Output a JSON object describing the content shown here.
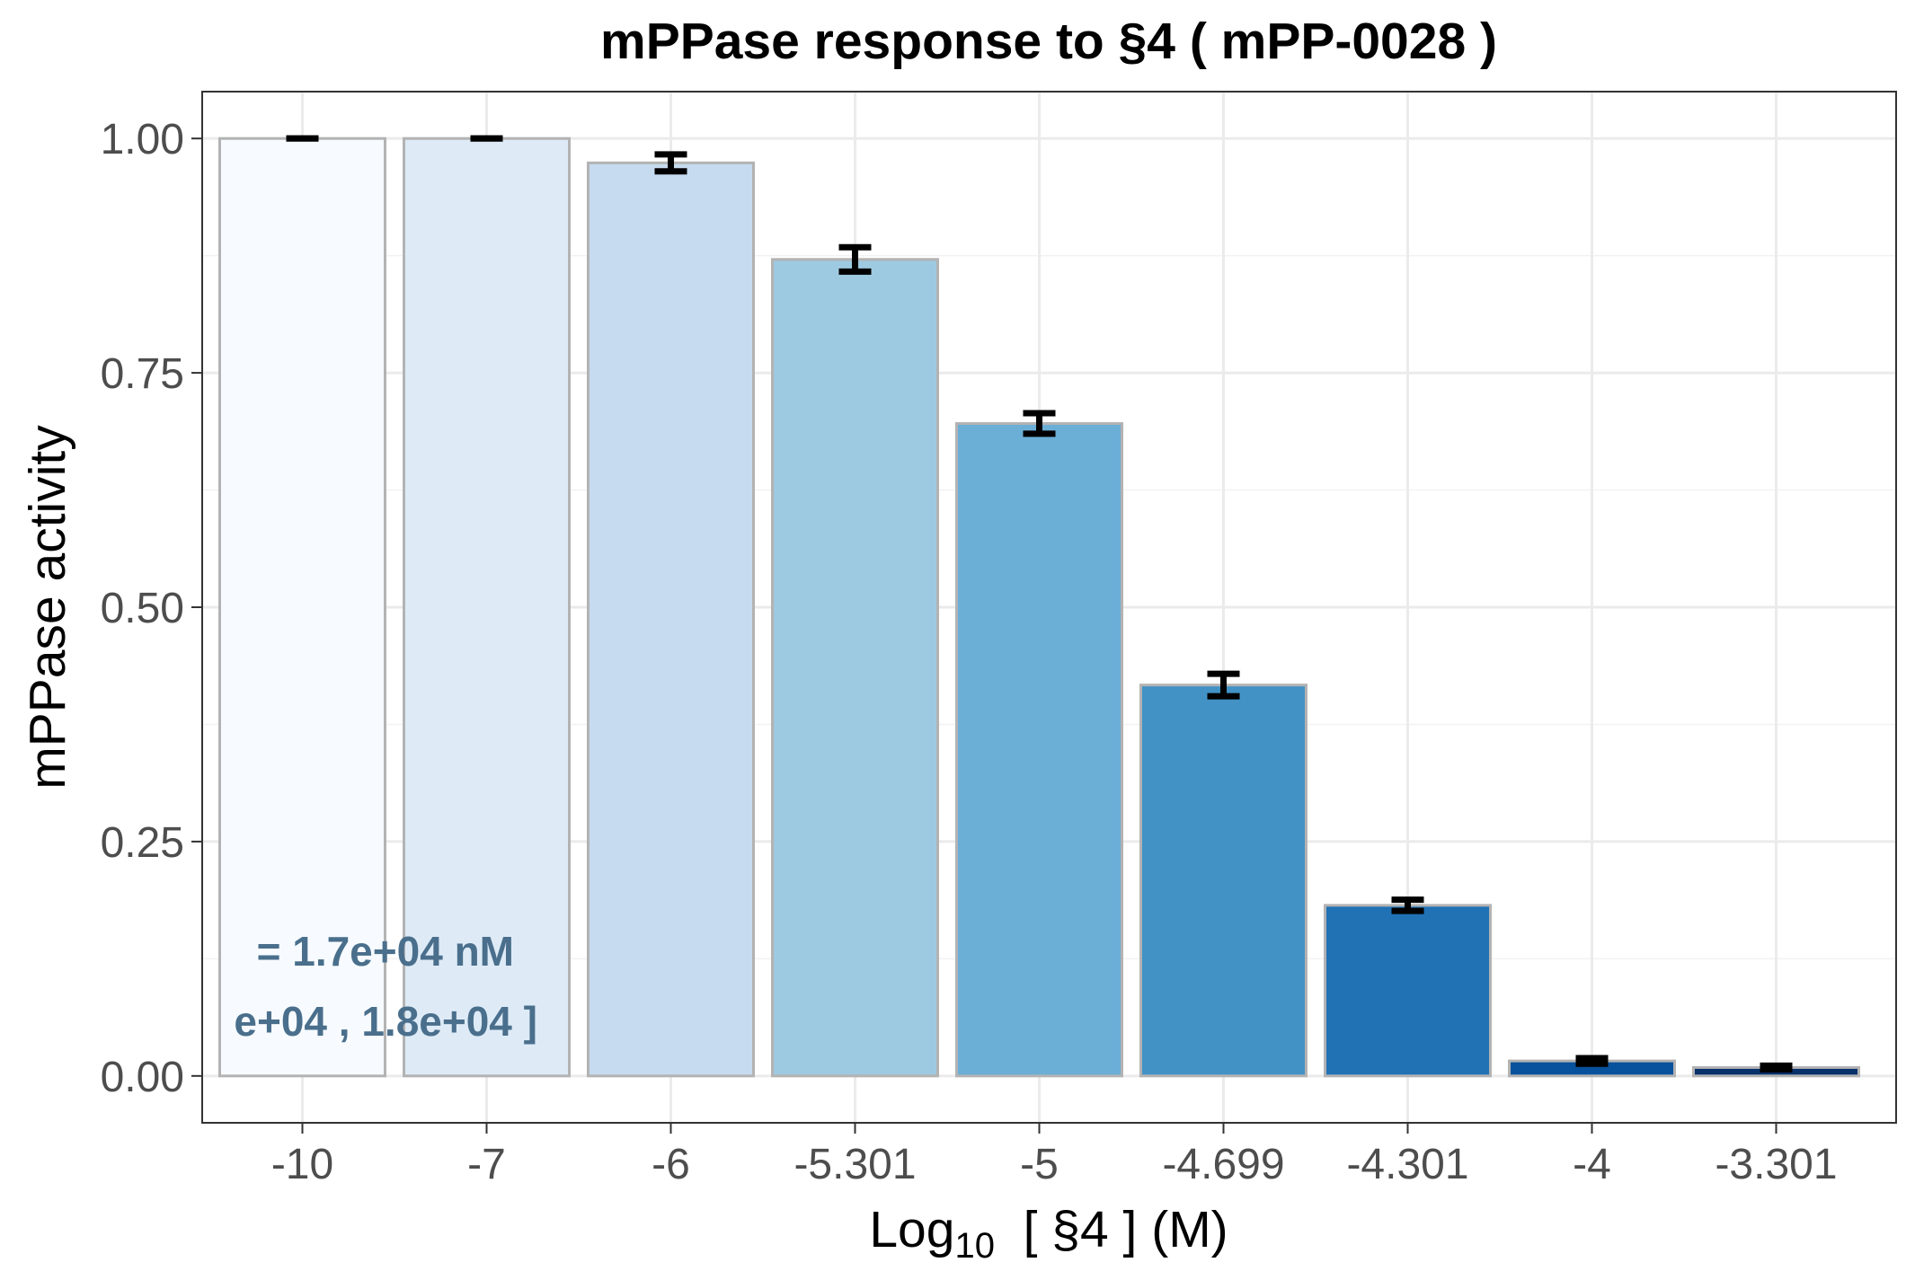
{
  "chart_data": {
    "type": "bar",
    "title": "mPPase response to §4 ( mPP-0028 )",
    "xlabel_prefix": "Log",
    "xlabel_sub": "10",
    "xlabel_rest": "  [ §4 ] (M)",
    "ylabel": "mPPase activity",
    "categories": [
      "-10",
      "-7",
      "-6",
      "-5.301",
      "-5",
      "-4.699",
      "-4.301",
      "-4",
      "-3.301"
    ],
    "values": [
      1.0,
      1.0,
      0.974,
      0.871,
      0.696,
      0.417,
      0.182,
      0.016,
      0.009
    ],
    "error_low": [
      1.0,
      1.0,
      0.965,
      0.858,
      0.685,
      0.405,
      0.176,
      0.013,
      0.007
    ],
    "error_high": [
      1.0,
      1.0,
      0.983,
      0.884,
      0.707,
      0.429,
      0.188,
      0.019,
      0.011
    ],
    "bar_colors": [
      "#f7fbff",
      "#deebf7",
      "#c6dbef",
      "#9ecae1",
      "#6baed6",
      "#4292c6",
      "#2171b5",
      "#08519c",
      "#08306b"
    ],
    "bar_outline": "#b3b3b3",
    "ylim": [
      -0.05,
      1.05
    ],
    "yticks": [
      "0.00",
      "0.25",
      "0.50",
      "0.75",
      "1.00"
    ],
    "ytick_values": [
      0,
      0.25,
      0.5,
      0.75,
      1.0
    ],
    "grid": true,
    "annotations": [
      "= 1.7e+04 nM",
      "e+04 , 1.8e+04 ]"
    ],
    "annotation_color": "#4a6f8c"
  }
}
